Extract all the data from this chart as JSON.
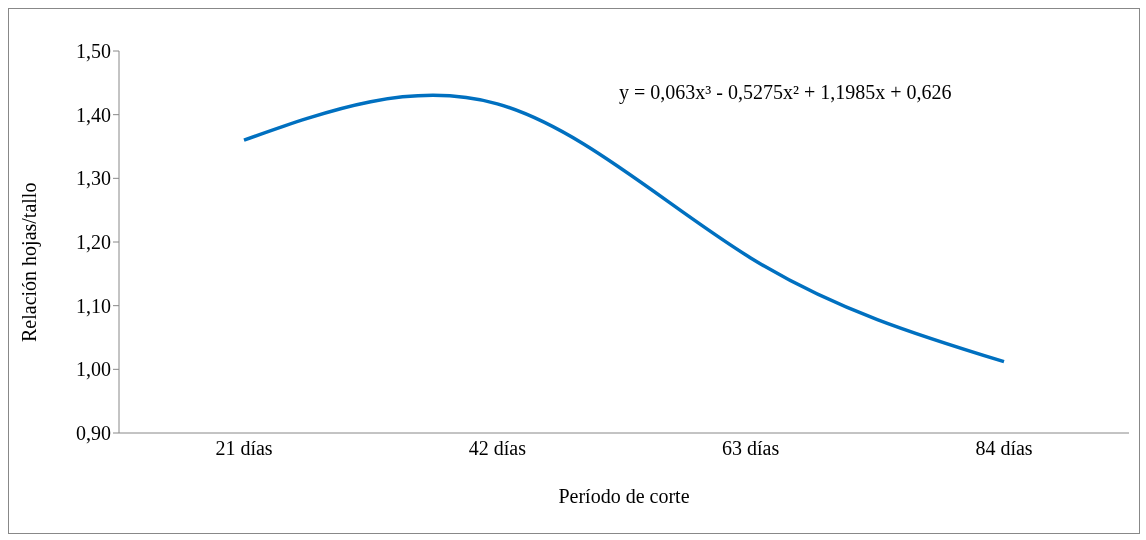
{
  "chart_data": {
    "type": "line",
    "xlabel": "Período de corte",
    "ylabel": "Relación hojas/tallo",
    "categories": [
      "21 días",
      "42 días",
      "63 días",
      "84 días"
    ],
    "series": [
      {
        "color": "#0070c0",
        "values": [
          1.36,
          1.417,
          1.175,
          1.012
        ]
      }
    ],
    "ylim": [
      0.9,
      1.5
    ],
    "yticks": [
      {
        "value": 0.9,
        "label": "0,90"
      },
      {
        "value": 1.0,
        "label": "1,00"
      },
      {
        "value": 1.1,
        "label": "1,10"
      },
      {
        "value": 1.2,
        "label": "1,20"
      },
      {
        "value": 1.3,
        "label": "1,30"
      },
      {
        "value": 1.4,
        "label": "1,40"
      },
      {
        "value": 1.5,
        "label": "1,50"
      }
    ],
    "annotations": [
      "y = 0,063x³ - 0,5275x² + 1,1985x + 0,626"
    ],
    "grid": false,
    "legend": false,
    "marker": "none",
    "line_style": "solid"
  }
}
